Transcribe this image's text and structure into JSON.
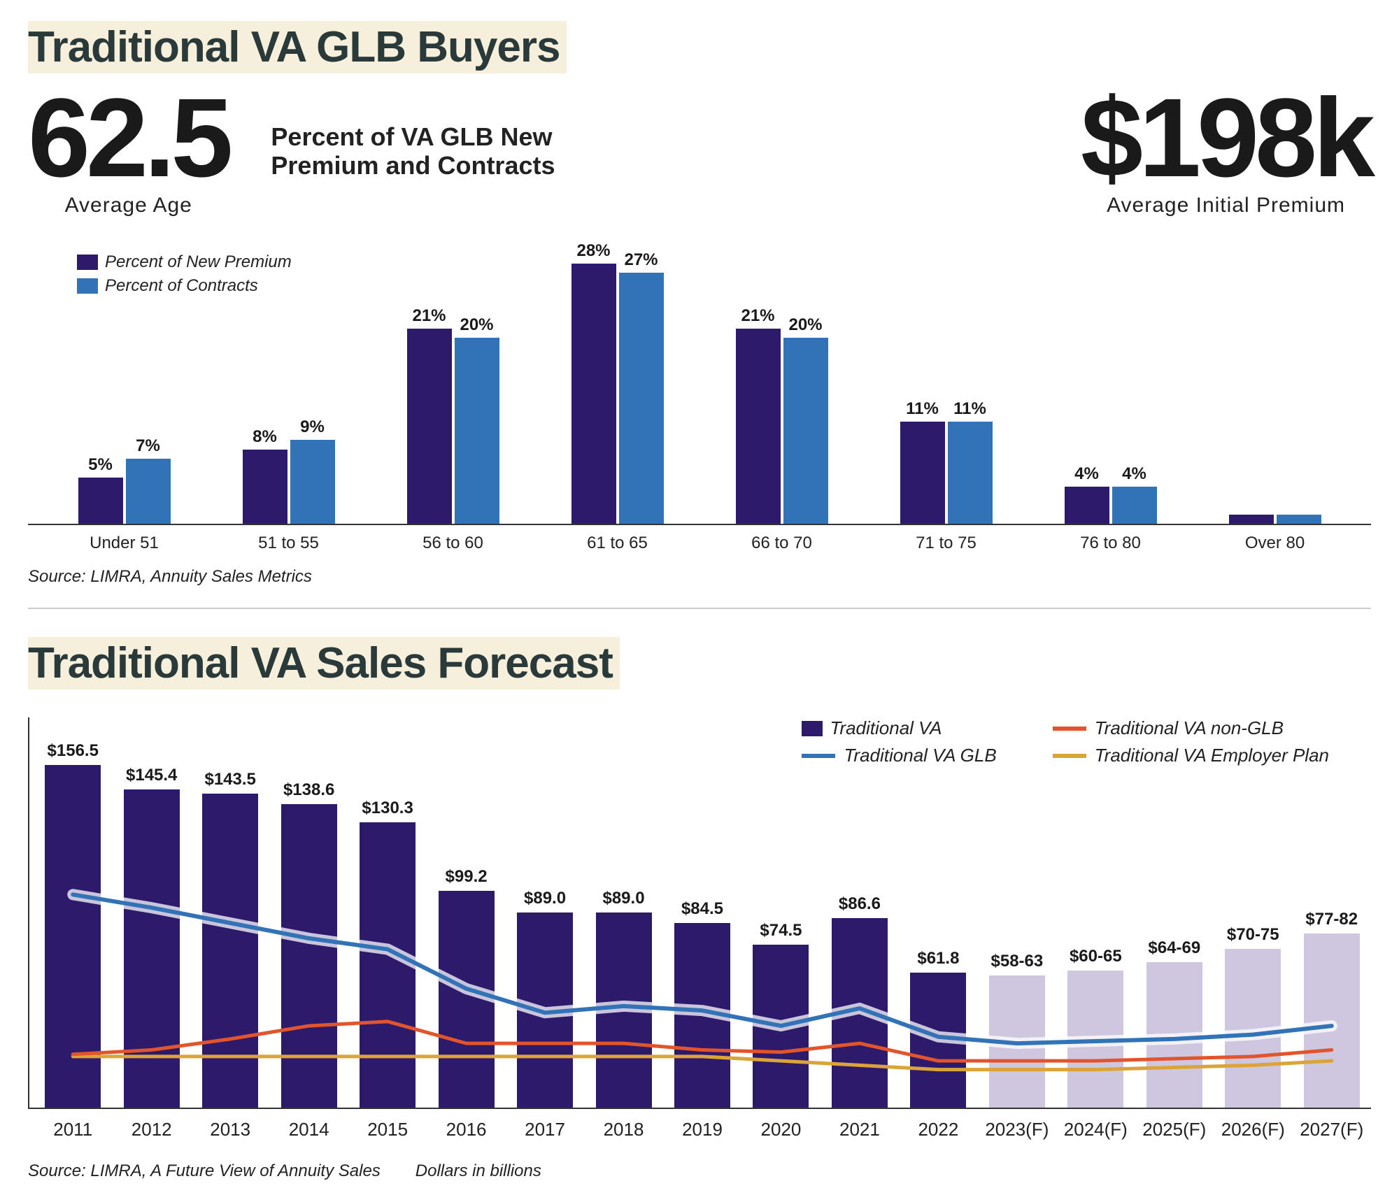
{
  "section1": {
    "title": "Traditional VA GLB Buyers",
    "avg_age": {
      "value": "62.5",
      "label": "Average Age"
    },
    "avg_premium": {
      "value": "$198k",
      "label": "Average Initial Premium"
    },
    "chart_title": "Percent of VA GLB New Premium and Contracts",
    "legend": {
      "series1": {
        "label": "Percent of New Premium",
        "color": "#2d1a6b"
      },
      "series2": {
        "label": "Percent of Contracts",
        "color": "#3273b8"
      }
    },
    "categories": [
      "Under 51",
      "51 to 55",
      "56 to 60",
      "61 to 65",
      "66 to 70",
      "71 to 75",
      "76 to 80",
      "Over 80"
    ],
    "premium_pct": [
      5,
      8,
      21,
      28,
      21,
      11,
      4,
      1
    ],
    "contracts_pct": [
      7,
      9,
      20,
      27,
      20,
      11,
      4,
      1
    ],
    "premium_labels": [
      "5%",
      "8%",
      "21%",
      "28%",
      "21%",
      "11%",
      "4%",
      ""
    ],
    "contracts_labels": [
      "7%",
      "9%",
      "20%",
      "27%",
      "20%",
      "11%",
      "4%",
      ""
    ],
    "ymax": 30,
    "source": "Source: LIMRA, Annuity Sales Metrics",
    "bar_label_fontsize": 24,
    "cat_label_fontsize": 24
  },
  "section2": {
    "title": "Traditional VA Sales Forecast",
    "legend": {
      "bar": {
        "label": "Traditional VA",
        "color": "#2d1a6b"
      },
      "line_glb": {
        "label": "Traditional VA GLB",
        "color": "#3273b8"
      },
      "line_nonglb": {
        "label": "Traditional VA non-GLB",
        "color": "#e2552c"
      },
      "line_emp": {
        "label": "Traditional VA Employer Plan",
        "color": "#daa536"
      }
    },
    "categories": [
      "2011",
      "2012",
      "2013",
      "2014",
      "2015",
      "2016",
      "2017",
      "2018",
      "2019",
      "2020",
      "2021",
      "2022",
      "2023(F)",
      "2024(F)",
      "2025(F)",
      "2026(F)",
      "2027(F)"
    ],
    "bar_values": [
      156.5,
      145.4,
      143.5,
      138.6,
      130.3,
      99.2,
      89.0,
      89.0,
      84.5,
      74.5,
      86.6,
      61.8,
      60.5,
      62.5,
      66.5,
      72.5,
      79.5
    ],
    "bar_labels": [
      "$156.5",
      "$145.4",
      "$143.5",
      "$138.6",
      "$130.3",
      "$99.2",
      "$89.0",
      "$89.0",
      "$84.5",
      "$74.5",
      "$86.6",
      "$61.8",
      "$58-63",
      "$60-65",
      "$64-69",
      "$70-75",
      "$77-82"
    ],
    "bar_colors": [
      "#2d1a6b",
      "#2d1a6b",
      "#2d1a6b",
      "#2d1a6b",
      "#2d1a6b",
      "#2d1a6b",
      "#2d1a6b",
      "#2d1a6b",
      "#2d1a6b",
      "#2d1a6b",
      "#2d1a6b",
      "#2d1a6b",
      "#cfc7df",
      "#cfc7df",
      "#cfc7df",
      "#cfc7df",
      "#cfc7df"
    ],
    "line_glb_values": [
      98,
      92,
      85,
      78,
      73,
      55,
      44,
      47,
      45,
      38,
      46,
      33,
      30,
      31,
      32,
      34,
      38
    ],
    "line_nonglb_values": [
      25,
      27,
      32,
      38,
      40,
      30,
      30,
      30,
      27,
      26,
      30,
      22,
      22,
      22,
      23,
      24,
      27
    ],
    "line_emp_values": [
      24,
      24,
      24,
      24,
      24,
      24,
      24,
      24,
      24,
      22,
      20,
      18,
      18,
      18,
      19,
      20,
      22
    ],
    "ymax": 170,
    "source": "Source: LIMRA, A Future View of Annuity Sales",
    "units": "Dollars in billions"
  },
  "colors": {
    "title_bg": "#f5efdb",
    "title_text": "#2a3a3a",
    "axis": "#333333",
    "forecast_bar": "#cfc7df"
  }
}
